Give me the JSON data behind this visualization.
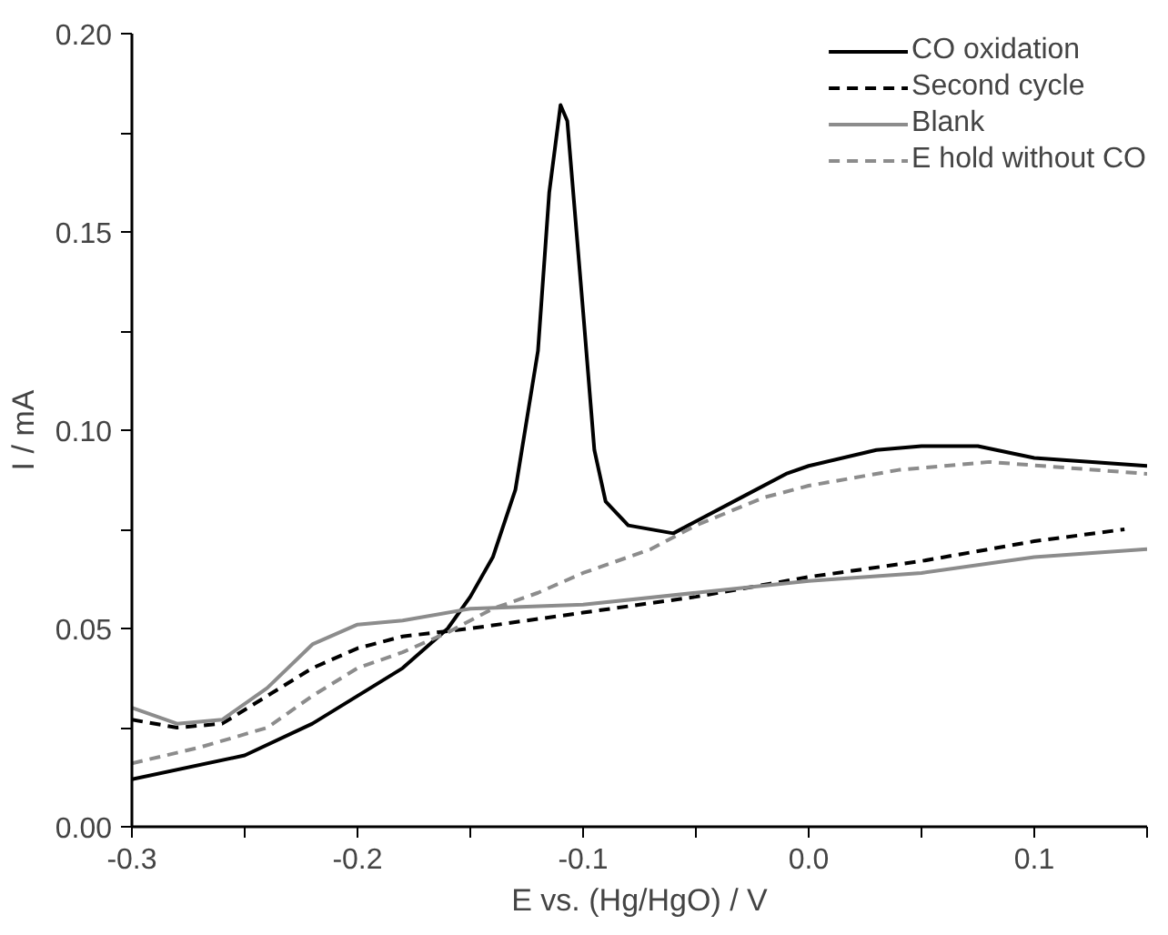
{
  "chart_data": {
    "type": "line",
    "xlabel": "E vs. (Hg/HgO) / V",
    "ylabel": "I / mA",
    "xlim": [
      -0.3,
      0.15
    ],
    "ylim": [
      0,
      0.2
    ],
    "xticks": [
      {
        "value": -0.3,
        "label": "-0.3"
      },
      {
        "value": -0.25,
        "label": null
      },
      {
        "value": -0.2,
        "label": "-0.2"
      },
      {
        "value": -0.15,
        "label": null
      },
      {
        "value": -0.1,
        "label": "-0.1"
      },
      {
        "value": -0.05,
        "label": null
      },
      {
        "value": 0,
        "label": "0.0"
      },
      {
        "value": 0.05,
        "label": null
      },
      {
        "value": 0.1,
        "label": "0.1"
      },
      {
        "value": 0.15,
        "label": null
      }
    ],
    "yticks": [
      {
        "value": 0,
        "label": "0.00"
      },
      {
        "value": 0.025,
        "label": null
      },
      {
        "value": 0.05,
        "label": "0.05"
      },
      {
        "value": 0.075,
        "label": null
      },
      {
        "value": 0.1,
        "label": "0.10"
      },
      {
        "value": 0.125,
        "label": null
      },
      {
        "value": 0.15,
        "label": "0.15"
      },
      {
        "value": 0.175,
        "label": null
      },
      {
        "value": 0.2,
        "label": "0.20"
      }
    ],
    "grid": false,
    "legend": "top right",
    "marker": "none",
    "series": [
      {
        "name": "CO oxidation",
        "color": "#000000",
        "line_style": "solid",
        "x": [
          -0.3,
          -0.25,
          -0.22,
          -0.2,
          -0.18,
          -0.16,
          -0.15,
          -0.14,
          -0.13,
          -0.12,
          -0.115,
          -0.11,
          -0.107,
          -0.1,
          -0.095,
          -0.09,
          -0.08,
          -0.06,
          -0.05,
          -0.03,
          -0.01,
          0.0,
          0.03,
          0.05,
          0.075,
          0.1,
          0.15
        ],
        "values": [
          0.012,
          0.018,
          0.026,
          0.033,
          0.04,
          0.05,
          0.058,
          0.068,
          0.085,
          0.12,
          0.16,
          0.182,
          0.178,
          0.13,
          0.095,
          0.082,
          0.076,
          0.074,
          0.077,
          0.083,
          0.089,
          0.091,
          0.095,
          0.096,
          0.096,
          0.093,
          0.091
        ]
      },
      {
        "name": "Second cycle",
        "color": "#000000",
        "line_style": "dashed",
        "x": [
          -0.3,
          -0.28,
          -0.26,
          -0.24,
          -0.22,
          -0.2,
          -0.18,
          -0.15,
          -0.1,
          -0.05,
          0,
          0.05,
          0.1,
          0.14
        ],
        "values": [
          0.027,
          0.025,
          0.026,
          0.033,
          0.04,
          0.045,
          0.048,
          0.05,
          0.054,
          0.058,
          0.063,
          0.067,
          0.072,
          0.075
        ]
      },
      {
        "name": "Blank",
        "color": "#8c8c8c",
        "line_style": "solid",
        "x": [
          -0.3,
          -0.28,
          -0.26,
          -0.24,
          -0.22,
          -0.2,
          -0.18,
          -0.15,
          -0.1,
          -0.05,
          0,
          0.05,
          0.1,
          0.15
        ],
        "values": [
          0.03,
          0.026,
          0.027,
          0.035,
          0.046,
          0.051,
          0.052,
          0.055,
          0.056,
          0.059,
          0.062,
          0.064,
          0.068,
          0.07
        ]
      },
      {
        "name": "E hold without CO",
        "color": "#8c8c8c",
        "line_style": "dashed",
        "x": [
          -0.3,
          -0.27,
          -0.24,
          -0.22,
          -0.2,
          -0.18,
          -0.16,
          -0.14,
          -0.12,
          -0.1,
          -0.07,
          -0.05,
          -0.02,
          0,
          0.04,
          0.08,
          0.15
        ],
        "values": [
          0.016,
          0.02,
          0.025,
          0.033,
          0.04,
          0.044,
          0.049,
          0.055,
          0.059,
          0.064,
          0.07,
          0.076,
          0.083,
          0.086,
          0.09,
          0.092,
          0.089
        ]
      }
    ]
  }
}
